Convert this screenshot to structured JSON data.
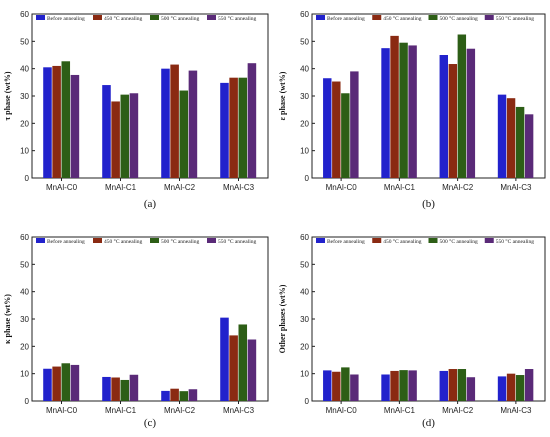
{
  "colors": {
    "series": [
      "#2222cc",
      "#8a2a12",
      "#2d5e16",
      "#5a2a78"
    ],
    "frame": "#222222"
  },
  "chart_data": [
    {
      "type": "bar",
      "panel_label": "(a)",
      "ylabel": "τ phase (wt%)",
      "ylim": [
        0,
        60
      ],
      "yticks": [
        0,
        10,
        20,
        30,
        40,
        50,
        60
      ],
      "categories": [
        "MnAl-C0",
        "MnAl-C1",
        "MnAl-C2",
        "MnAl-C3"
      ],
      "legend_position": "top",
      "series": [
        {
          "name": "Before annealing",
          "values": [
            40.5,
            34.0,
            40.0,
            34.8
          ]
        },
        {
          "name": "450 °C annealing",
          "values": [
            41.0,
            28.0,
            41.5,
            36.7
          ]
        },
        {
          "name": "500 °C annealing",
          "values": [
            42.7,
            30.5,
            32.0,
            36.7
          ]
        },
        {
          "name": "550 °C annealing",
          "values": [
            37.7,
            31.0,
            39.3,
            42.0
          ]
        }
      ]
    },
    {
      "type": "bar",
      "panel_label": "(b)",
      "ylabel": "ε phase (wt%)",
      "ylim": [
        0,
        60
      ],
      "yticks": [
        0,
        10,
        20,
        30,
        40,
        50,
        60
      ],
      "categories": [
        "MnAl-C0",
        "MnAl-C1",
        "MnAl-C2",
        "MnAl-C3"
      ],
      "legend_position": "top",
      "series": [
        {
          "name": "Before annealing",
          "values": [
            36.5,
            47.5,
            45.0,
            30.5
          ]
        },
        {
          "name": "450 °C annealing",
          "values": [
            35.3,
            52.0,
            41.7,
            29.2
          ]
        },
        {
          "name": "500 °C annealing",
          "values": [
            31.0,
            49.5,
            52.5,
            26.0
          ]
        },
        {
          "name": "550 °C annealing",
          "values": [
            39.0,
            48.5,
            47.3,
            23.3
          ]
        }
      ]
    },
    {
      "type": "bar",
      "panel_label": "(c)",
      "ylabel": "κ phase (wt%)",
      "ylim": [
        0,
        60
      ],
      "yticks": [
        0,
        10,
        20,
        30,
        40,
        50,
        60
      ],
      "categories": [
        "MnAl-C0",
        "MnAl-C1",
        "MnAl-C2",
        "MnAl-C3"
      ],
      "legend_position": "top",
      "series": [
        {
          "name": "Before annealing",
          "values": [
            11.8,
            8.8,
            3.7,
            30.5
          ]
        },
        {
          "name": "450 °C annealing",
          "values": [
            12.6,
            8.6,
            4.5,
            24.0
          ]
        },
        {
          "name": "500 °C annealing",
          "values": [
            13.8,
            7.7,
            3.6,
            28.0
          ]
        },
        {
          "name": "550 °C annealing",
          "values": [
            13.2,
            9.6,
            4.3,
            22.5
          ]
        }
      ]
    },
    {
      "type": "bar",
      "panel_label": "(d)",
      "ylabel": "Other phases (wt%)",
      "ylim": [
        0,
        60
      ],
      "yticks": [
        0,
        10,
        20,
        30,
        40,
        50,
        60
      ],
      "categories": [
        "MnAl-C0",
        "MnAl-C1",
        "MnAl-C2",
        "MnAl-C3"
      ],
      "legend_position": "top",
      "series": [
        {
          "name": "Before annealing",
          "values": [
            11.2,
            9.7,
            11.0,
            9.0
          ]
        },
        {
          "name": "450 °C annealing",
          "values": [
            10.7,
            11.0,
            11.7,
            10.0
          ]
        },
        {
          "name": "500 °C annealing",
          "values": [
            12.3,
            11.3,
            11.7,
            9.5
          ]
        },
        {
          "name": "550 °C annealing",
          "values": [
            9.7,
            11.2,
            8.7,
            11.7
          ]
        }
      ]
    }
  ]
}
